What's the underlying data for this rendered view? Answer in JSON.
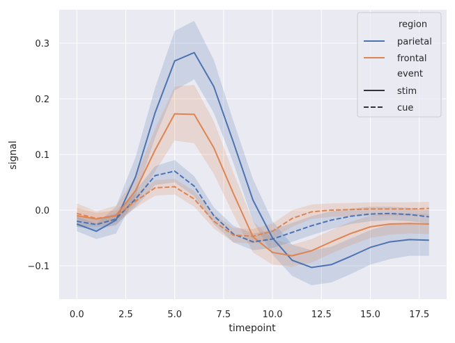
{
  "chart_data": {
    "type": "line",
    "xlabel": "timepoint",
    "ylabel": "signal",
    "xlim": [
      -0.9,
      18.9
    ],
    "ylim": [
      -0.16,
      0.36
    ],
    "xticks": [
      0.0,
      2.5,
      5.0,
      7.5,
      10.0,
      12.5,
      15.0,
      17.5
    ],
    "xtick_labels": [
      "0.0",
      "2.5",
      "5.0",
      "7.5",
      "10.0",
      "12.5",
      "15.0",
      "17.5"
    ],
    "yticks": [
      -0.1,
      0.0,
      0.1,
      0.2,
      0.3
    ],
    "ytick_labels": [
      "−0.1",
      "0.0",
      "0.1",
      "0.2",
      "0.3"
    ],
    "grid": true,
    "legend_position": "top-right",
    "legend": {
      "hue_title": "region",
      "style_title": "event",
      "items": [
        {
          "label": "parietal",
          "kind": "hue",
          "color": "#4c72b0"
        },
        {
          "label": "frontal",
          "kind": "hue",
          "color": "#dd8452"
        },
        {
          "label": "stim",
          "kind": "style",
          "dash": "solid"
        },
        {
          "label": "cue",
          "kind": "style",
          "dash": "dashed"
        }
      ]
    },
    "x": [
      0,
      1,
      2,
      3,
      4,
      5,
      6,
      7,
      8,
      9,
      10,
      11,
      12,
      13,
      14,
      15,
      16,
      17,
      18
    ],
    "series": [
      {
        "region": "parietal",
        "event": "stim",
        "color": "#4c72b0",
        "dash": "solid",
        "values": [
          -0.025,
          -0.038,
          -0.018,
          0.06,
          0.175,
          0.268,
          0.283,
          0.222,
          0.122,
          0.018,
          -0.05,
          -0.09,
          -0.103,
          -0.098,
          -0.083,
          -0.067,
          -0.057,
          -0.053,
          -0.054
        ],
        "ci_low": [
          -0.038,
          -0.052,
          -0.042,
          0.025,
          0.13,
          0.215,
          0.235,
          0.175,
          0.085,
          -0.02,
          -0.08,
          -0.118,
          -0.135,
          -0.13,
          -0.115,
          -0.098,
          -0.088,
          -0.082,
          -0.082
        ],
        "ci_high": [
          -0.012,
          -0.024,
          0.006,
          0.095,
          0.22,
          0.322,
          0.34,
          0.27,
          0.16,
          0.056,
          -0.02,
          -0.062,
          -0.072,
          -0.066,
          -0.051,
          -0.036,
          -0.026,
          -0.024,
          -0.026
        ]
      },
      {
        "region": "frontal",
        "event": "stim",
        "color": "#dd8452",
        "dash": "solid",
        "values": [
          -0.01,
          -0.016,
          -0.01,
          0.035,
          0.108,
          0.173,
          0.172,
          0.112,
          0.03,
          -0.048,
          -0.076,
          -0.082,
          -0.073,
          -0.057,
          -0.042,
          -0.03,
          -0.025,
          -0.024,
          -0.025
        ],
        "ci_low": [
          -0.03,
          -0.03,
          -0.028,
          0.01,
          0.07,
          0.125,
          0.12,
          0.065,
          -0.008,
          -0.076,
          -0.098,
          -0.102,
          -0.094,
          -0.078,
          -0.063,
          -0.05,
          -0.044,
          -0.042,
          -0.043
        ],
        "ci_high": [
          0.012,
          -0.002,
          0.008,
          0.06,
          0.146,
          0.222,
          0.225,
          0.16,
          0.068,
          -0.02,
          -0.052,
          -0.062,
          -0.052,
          -0.036,
          -0.021,
          -0.01,
          -0.006,
          -0.006,
          -0.007
        ]
      },
      {
        "region": "parietal",
        "event": "cue",
        "color": "#4c72b0",
        "dash": "dashed",
        "values": [
          -0.02,
          -0.026,
          -0.016,
          0.02,
          0.062,
          0.07,
          0.043,
          -0.01,
          -0.043,
          -0.057,
          -0.052,
          -0.04,
          -0.028,
          -0.018,
          -0.011,
          -0.007,
          -0.006,
          -0.008,
          -0.012
        ],
        "ci_low": [
          -0.03,
          -0.036,
          -0.026,
          0.005,
          0.045,
          0.05,
          0.025,
          -0.025,
          -0.058,
          -0.072,
          -0.068,
          -0.057,
          -0.045,
          -0.034,
          -0.025,
          -0.02,
          -0.018,
          -0.02,
          -0.024
        ],
        "ci_high": [
          -0.01,
          -0.016,
          -0.006,
          0.035,
          0.079,
          0.09,
          0.061,
          0.005,
          -0.028,
          -0.042,
          -0.036,
          -0.023,
          -0.011,
          -0.002,
          0.003,
          0.006,
          0.006,
          0.004,
          0.0
        ]
      },
      {
        "region": "frontal",
        "event": "cue",
        "color": "#dd8452",
        "dash": "dashed",
        "values": [
          -0.006,
          -0.015,
          -0.01,
          0.016,
          0.04,
          0.042,
          0.02,
          -0.02,
          -0.045,
          -0.047,
          -0.038,
          -0.015,
          -0.003,
          0.0,
          0.001,
          0.002,
          0.002,
          0.002,
          0.003
        ],
        "ci_low": [
          -0.016,
          -0.025,
          -0.02,
          0.004,
          0.026,
          0.028,
          0.006,
          -0.033,
          -0.058,
          -0.06,
          -0.052,
          -0.03,
          -0.016,
          -0.012,
          -0.011,
          -0.01,
          -0.01,
          -0.01,
          -0.009
        ],
        "ci_high": [
          0.004,
          -0.005,
          0.0,
          0.028,
          0.054,
          0.056,
          0.034,
          -0.007,
          -0.032,
          -0.034,
          -0.024,
          0.0,
          0.01,
          0.012,
          0.013,
          0.014,
          0.014,
          0.014,
          0.015
        ]
      }
    ]
  }
}
